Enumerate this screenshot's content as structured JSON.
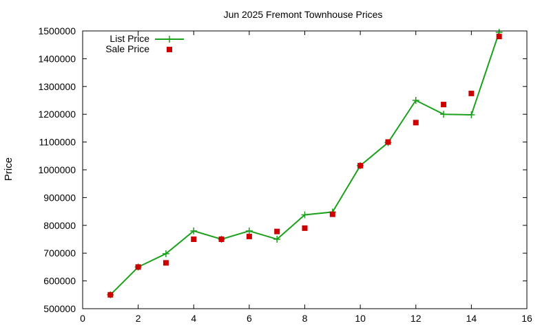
{
  "chart_data": {
    "type": "line",
    "title": "Jun 2025 Fremont Townhouse Prices",
    "xlabel": "",
    "ylabel": "Price",
    "xlim": [
      0,
      16
    ],
    "ylim": [
      500000,
      1500000
    ],
    "x_ticks": [
      0,
      2,
      4,
      6,
      8,
      10,
      12,
      14,
      16
    ],
    "y_ticks": [
      500000,
      600000,
      700000,
      800000,
      900000,
      1000000,
      1100000,
      1200000,
      1300000,
      1400000,
      1500000
    ],
    "grid": false,
    "legend_position": "top-left",
    "series": [
      {
        "name": "List Price",
        "style": "line-with-plus-markers",
        "color": "#1aa01a",
        "x": [
          1,
          2,
          3,
          4,
          5,
          6,
          7,
          8,
          9,
          10,
          11,
          12,
          13,
          14,
          15
        ],
        "values": [
          550000,
          650000,
          698000,
          780000,
          750000,
          780000,
          750000,
          838000,
          848000,
          1015000,
          1098000,
          1250000,
          1200000,
          1198000,
          1495000
        ]
      },
      {
        "name": "Sale Price",
        "style": "square-markers",
        "color": "#cc0000",
        "x": [
          1,
          2,
          3,
          4,
          5,
          6,
          7,
          8,
          9,
          10,
          11,
          12,
          13,
          14,
          15
        ],
        "values": [
          550000,
          650000,
          665000,
          750000,
          750000,
          760000,
          778000,
          790000,
          840000,
          1015000,
          1100000,
          1170000,
          1235000,
          1275000,
          1480000
        ]
      }
    ]
  }
}
